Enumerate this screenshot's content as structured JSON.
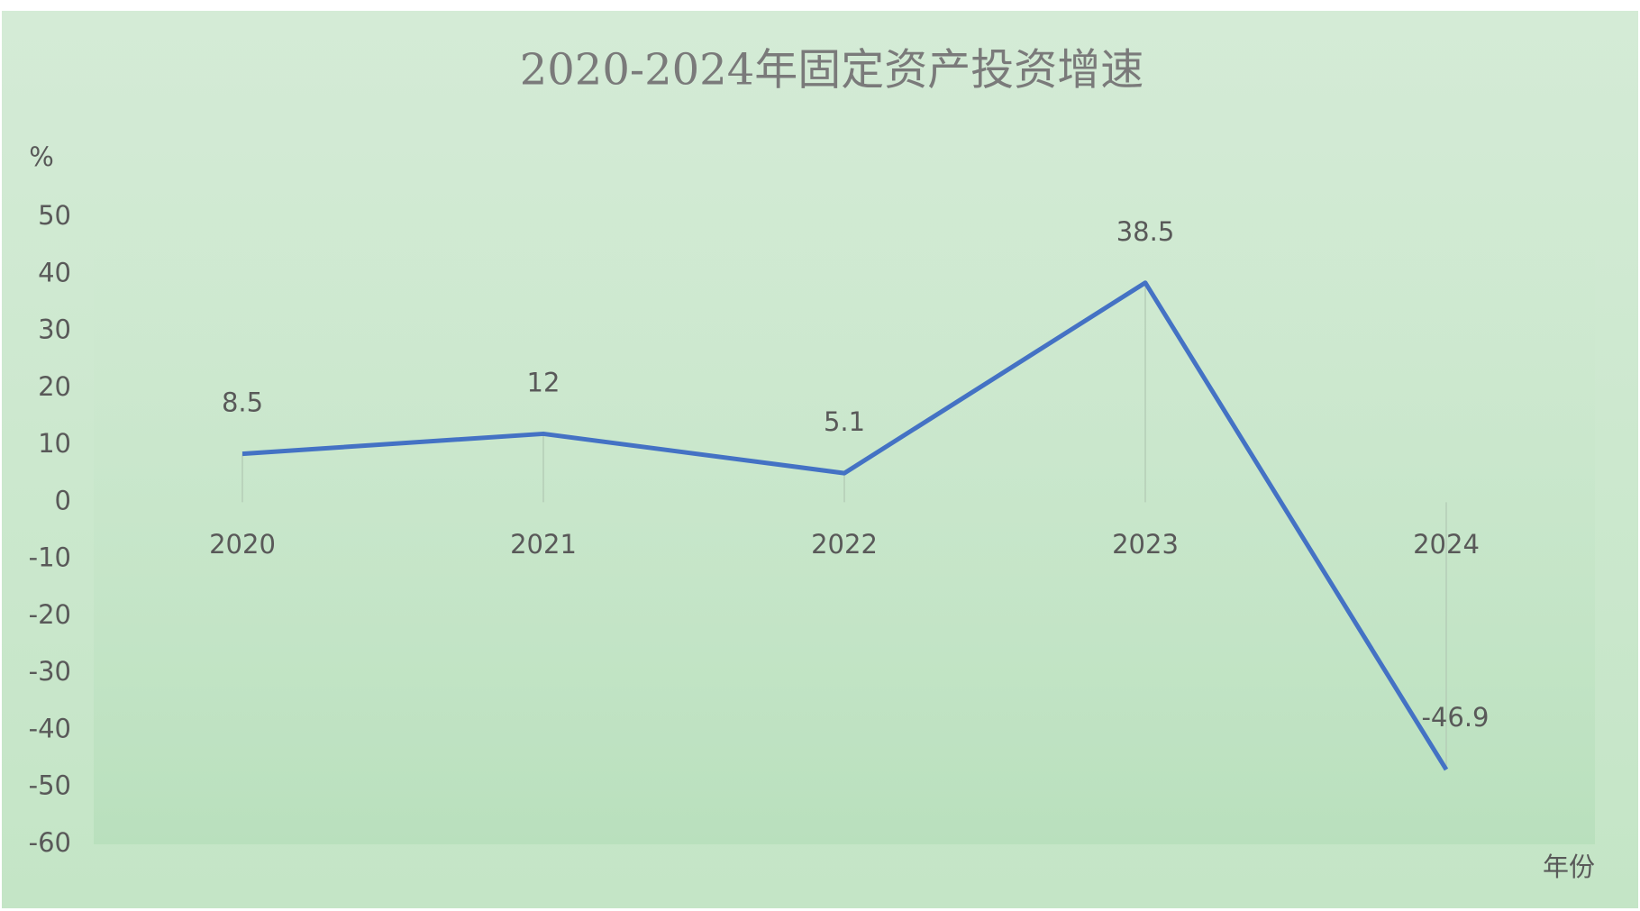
{
  "chart_data": {
    "type": "line",
    "title": "2020-2024年固定资产投资增速",
    "y_label": "%",
    "x_label": "年份",
    "categories": [
      "2020",
      "2021",
      "2022",
      "2023",
      "2024"
    ],
    "series": [
      {
        "name": "固定资产投资增速",
        "color": "#4472c4",
        "values": [
          8.5,
          12,
          5.1,
          38.5,
          -46.9
        ]
      }
    ],
    "ylim": [
      -60,
      50
    ],
    "yticks": [
      -60,
      -50,
      -40,
      -30,
      -20,
      -10,
      0,
      10,
      20,
      30,
      40,
      50
    ],
    "grid": false,
    "data_labels": true,
    "legend": false
  }
}
